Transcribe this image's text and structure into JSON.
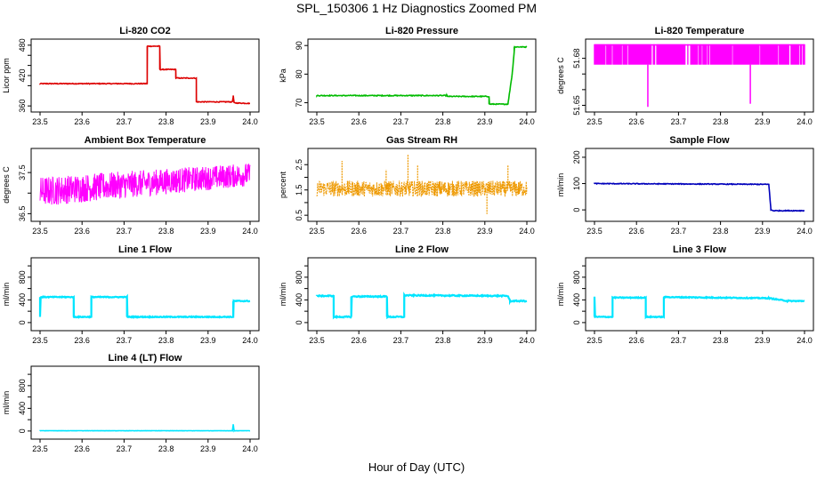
{
  "page": {
    "title": "SPL_150306  1 Hz Diagnostics Zoomed PM",
    "xlabel": "Hour of Day (UTC)"
  },
  "chart_data": [
    {
      "type": "line",
      "title": "Li-820 CO2",
      "ylabel": "Licor ppm",
      "xlim": [
        23.5,
        24.0
      ],
      "ylim": [
        355,
        485
      ],
      "yticks": [
        360,
        400,
        420,
        440,
        460,
        480
      ],
      "ytick_labels": [
        "360",
        "",
        "420",
        "",
        "",
        "480"
      ],
      "xticks": [
        23.5,
        23.6,
        23.7,
        23.8,
        23.9,
        24.0
      ],
      "xtick_labels": [
        "23.5",
        "23.6",
        "23.7",
        "23.8",
        "23.9",
        "24.0"
      ],
      "color": "#dd0000",
      "noise": 0.8,
      "series": [
        {
          "x": [
            23.5,
            23.755,
            23.755,
            23.785,
            23.785,
            23.823,
            23.823,
            23.872,
            23.872,
            23.958,
            23.96,
            23.962,
            23.962,
            24.0
          ],
          "y": [
            404,
            404,
            478,
            478,
            432,
            432,
            415,
            415,
            368,
            368,
            380,
            366,
            366,
            365
          ]
        }
      ]
    },
    {
      "type": "line",
      "title": "Li-820 Pressure",
      "ylabel": "kPa",
      "xlim": [
        23.5,
        24.0
      ],
      "ylim": [
        68,
        91
      ],
      "yticks": [
        70,
        80,
        90
      ],
      "ytick_labels": [
        "70",
        "80",
        "90"
      ],
      "xticks": [
        23.5,
        23.6,
        23.7,
        23.8,
        23.9,
        24.0
      ],
      "xtick_labels": [
        "23.5",
        "23.6",
        "23.7",
        "23.8",
        "23.9",
        "24.0"
      ],
      "color": "#00bb00",
      "noise": 0.15,
      "series": [
        {
          "x": [
            23.5,
            23.81,
            23.81,
            23.91,
            23.91,
            23.955,
            23.965,
            23.97,
            23.97,
            24.0
          ],
          "y": [
            72.5,
            72.5,
            72.2,
            72.2,
            69.5,
            69.5,
            80,
            88,
            89.5,
            89.5
          ]
        }
      ]
    },
    {
      "type": "line",
      "title": "Li-820 Temperature",
      "ylabel": "degrees C",
      "xlim": [
        23.5,
        24.0
      ],
      "ylim": [
        51.648,
        51.69
      ],
      "yticks": [
        51.65,
        51.66,
        51.67,
        51.68
      ],
      "ytick_labels": [
        "51.65",
        "",
        "",
        "51.68"
      ],
      "xticks": [
        23.5,
        23.6,
        23.7,
        23.8,
        23.9,
        24.0
      ],
      "xtick_labels": [
        "23.5",
        "23.6",
        "23.7",
        "23.8",
        "23.9",
        "24.0"
      ],
      "color": "#ff00ff",
      "style": "dense",
      "levels": [
        51.689,
        51.676
      ],
      "spikes": [
        {
          "x": 23.627,
          "y": 51.649
        },
        {
          "x": 23.871,
          "y": 51.651
        }
      ]
    },
    {
      "type": "line",
      "title": "Ambient Box Temperature",
      "ylabel": "degrees C",
      "xlim": [
        23.5,
        24.0
      ],
      "ylim": [
        36.4,
        38.0
      ],
      "yticks": [
        36.5,
        37.0,
        37.5
      ],
      "ytick_labels": [
        "36.5",
        "",
        "37.5"
      ],
      "xticks": [
        23.5,
        23.6,
        23.7,
        23.8,
        23.9,
        24.0
      ],
      "xtick_labels": [
        "23.5",
        "23.6",
        "23.7",
        "23.8",
        "23.9",
        "24.0"
      ],
      "color": "#ff00ff",
      "style": "band",
      "band_low": [
        [
          23.5,
          36.52
        ],
        [
          24.0,
          37.05
        ]
      ],
      "band_high": [
        [
          23.5,
          37.55
        ],
        [
          24.0,
          37.85
        ]
      ]
    },
    {
      "type": "scatter",
      "title": "Gas Stream RH",
      "ylabel": "percent",
      "xlim": [
        23.5,
        24.0
      ],
      "ylim": [
        0.4,
        3.0
      ],
      "yticks": [
        0.5,
        1.0,
        1.5,
        2.0,
        2.5
      ],
      "ytick_labels": [
        "0.5",
        "",
        "1.5",
        "",
        "2.5"
      ],
      "xticks": [
        23.5,
        23.6,
        23.7,
        23.8,
        23.9,
        24.0
      ],
      "xtick_labels": [
        "23.5",
        "23.6",
        "23.7",
        "23.8",
        "23.9",
        "24.0"
      ],
      "color": "#ee9900",
      "style": "band",
      "band_low": [
        [
          23.5,
          1.1
        ],
        [
          24.0,
          1.1
        ]
      ],
      "band_high": [
        [
          23.5,
          2.0
        ],
        [
          24.0,
          2.0
        ]
      ],
      "spikes": [
        {
          "x": 23.56,
          "y": 2.65
        },
        {
          "x": 23.717,
          "y": 2.9
        },
        {
          "x": 23.74,
          "y": 2.5
        },
        {
          "x": 23.905,
          "y": 0.55
        },
        {
          "x": 23.955,
          "y": 2.5
        },
        {
          "x": 23.665,
          "y": 2.3
        }
      ]
    },
    {
      "type": "line",
      "title": "Sample Flow",
      "ylabel": "ml/min",
      "xlim": [
        23.5,
        24.0
      ],
      "ylim": [
        -30,
        220
      ],
      "yticks": [
        0,
        100,
        200
      ],
      "ytick_labels": [
        "0",
        "100",
        "200"
      ],
      "xticks": [
        23.5,
        23.6,
        23.7,
        23.8,
        23.9,
        24.0
      ],
      "xtick_labels": [
        "23.5",
        "23.6",
        "23.7",
        "23.8",
        "23.9",
        "24.0"
      ],
      "color": "#0000bb",
      "noise": 1.5,
      "series": [
        {
          "x": [
            23.5,
            23.915,
            23.92,
            23.925,
            24.0
          ],
          "y": [
            100,
            97,
            0,
            -3,
            -3
          ]
        }
      ]
    },
    {
      "type": "line",
      "title": "Line 1 Flow",
      "ylabel": "ml/min",
      "xlim": [
        23.5,
        24.0
      ],
      "ylim": [
        -80,
        1080
      ],
      "yticks": [
        0,
        200,
        400,
        600,
        800,
        1000
      ],
      "ytick_labels": [
        "0",
        "",
        "400",
        "",
        "800",
        ""
      ],
      "xticks": [
        23.5,
        23.6,
        23.7,
        23.8,
        23.9,
        24.0
      ],
      "xtick_labels": [
        "23.5",
        "23.6",
        "23.7",
        "23.8",
        "23.9",
        "24.0"
      ],
      "color": "#00e5ff",
      "noise": 8,
      "series": [
        {
          "x": [
            23.5,
            23.5,
            23.58,
            23.58,
            23.622,
            23.622,
            23.707,
            23.707,
            23.96,
            23.96,
            24.0
          ],
          "y": [
            100,
            450,
            450,
            100,
            100,
            450,
            450,
            100,
            100,
            380,
            380
          ]
        }
      ]
    },
    {
      "type": "line",
      "title": "Line 2 Flow",
      "ylabel": "ml/min",
      "xlim": [
        23.5,
        24.0
      ],
      "ylim": [
        -80,
        1080
      ],
      "yticks": [
        0,
        200,
        400,
        600,
        800,
        1000
      ],
      "ytick_labels": [
        "0",
        "",
        "400",
        "",
        "800",
        ""
      ],
      "xticks": [
        23.5,
        23.6,
        23.7,
        23.8,
        23.9,
        24.0
      ],
      "xtick_labels": [
        "23.5",
        "23.6",
        "23.7",
        "23.8",
        "23.9",
        "24.0"
      ],
      "color": "#00e5ff",
      "noise": 10,
      "series": [
        {
          "x": [
            23.5,
            23.54,
            23.54,
            23.582,
            23.582,
            23.667,
            23.667,
            23.708,
            23.708,
            23.955,
            23.96,
            24.0
          ],
          "y": [
            470,
            470,
            100,
            100,
            460,
            460,
            100,
            100,
            480,
            470,
            380,
            380
          ]
        }
      ]
    },
    {
      "type": "line",
      "title": "Line 3 Flow",
      "ylabel": "ml/min",
      "xlim": [
        23.5,
        24.0
      ],
      "ylim": [
        -80,
        1080
      ],
      "yticks": [
        0,
        200,
        400,
        600,
        800,
        1000
      ],
      "ytick_labels": [
        "0",
        "",
        "400",
        "",
        "800",
        ""
      ],
      "xticks": [
        23.5,
        23.6,
        23.7,
        23.8,
        23.9,
        24.0
      ],
      "xtick_labels": [
        "23.5",
        "23.6",
        "23.7",
        "23.8",
        "23.9",
        "24.0"
      ],
      "color": "#00e5ff",
      "noise": 8,
      "series": [
        {
          "x": [
            23.5,
            23.5,
            23.543,
            23.543,
            23.622,
            23.622,
            23.665,
            23.665,
            23.915,
            23.96,
            24.0
          ],
          "y": [
            450,
            100,
            100,
            440,
            440,
            100,
            100,
            450,
            430,
            380,
            380
          ]
        }
      ]
    },
    {
      "type": "line",
      "title": "Line 4 (LT) Flow",
      "ylabel": "ml/min",
      "xlim": [
        23.5,
        24.0
      ],
      "ylim": [
        -80,
        1080
      ],
      "yticks": [
        0,
        200,
        400,
        600,
        800,
        1000
      ],
      "ytick_labels": [
        "0",
        "",
        "400",
        "",
        "800",
        ""
      ],
      "xticks": [
        23.5,
        23.6,
        23.7,
        23.8,
        23.9,
        24.0
      ],
      "xtick_labels": [
        "23.5",
        "23.6",
        "23.7",
        "23.8",
        "23.9",
        "24.0"
      ],
      "color": "#00e5ff",
      "noise": 2,
      "series": [
        {
          "x": [
            23.5,
            23.958,
            23.96,
            23.962,
            24.0
          ],
          "y": [
            5,
            5,
            120,
            5,
            5
          ]
        }
      ]
    }
  ]
}
